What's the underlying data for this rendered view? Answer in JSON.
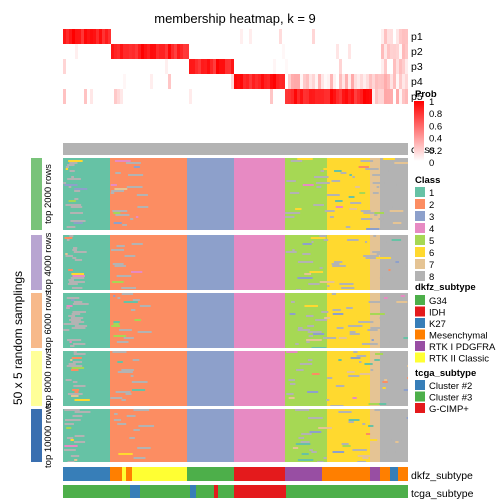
{
  "chart_data": {
    "type": "heatmap",
    "title": "membership heatmap, k = 9",
    "ylabel": "50 x 5 random samplings",
    "prob_rows": [
      "p1",
      "p2",
      "p3",
      "p4",
      "p5"
    ],
    "class_row_label": "class",
    "row_groups": [
      {
        "label": "top 2000 rows",
        "color": "#79c37a"
      },
      {
        "label": "top 4000 rows",
        "color": "#b8a5d1"
      },
      {
        "label": "top 6000 rows",
        "color": "#f7b98a"
      },
      {
        "label": "top 8000 rows",
        "color": "#ffff99"
      },
      {
        "label": "top 10000 rows",
        "color": "#3a6fb0"
      }
    ],
    "bottom_tracks": [
      "dkfz_subtype",
      "tcga_subtype"
    ],
    "prob_legend": {
      "title": "Prob",
      "ticks": [
        "1",
        "0.8",
        "0.6",
        "0.4",
        "0.2",
        "0"
      ],
      "low_color": "#ffffff",
      "high_color": "#ff0000"
    },
    "class_legend": {
      "title": "Class",
      "items": [
        {
          "label": "1",
          "color": "#66c2a5"
        },
        {
          "label": "2",
          "color": "#fc8d62"
        },
        {
          "label": "3",
          "color": "#8da0cb"
        },
        {
          "label": "4",
          "color": "#e78ac3"
        },
        {
          "label": "5",
          "color": "#a6d854"
        },
        {
          "label": "6",
          "color": "#ffd92f"
        },
        {
          "label": "7",
          "color": "#e5c494"
        },
        {
          "label": "8",
          "color": "#b3b3b3"
        }
      ]
    },
    "dkfz_legend": {
      "title": "dkfz_subtype",
      "items": [
        {
          "label": "G34",
          "color": "#4daf4a"
        },
        {
          "label": "IDH",
          "color": "#e41a1c"
        },
        {
          "label": "K27",
          "color": "#377eb8"
        },
        {
          "label": "Mesenchymal",
          "color": "#ff7f00"
        },
        {
          "label": "RTK I PDGFRA",
          "color": "#984ea3"
        },
        {
          "label": "RTK II Classic",
          "color": "#ffff33"
        }
      ]
    },
    "tcga_legend": {
      "title": "tcga_subtype",
      "items": [
        {
          "label": "Cluster #2",
          "color": "#377eb8"
        },
        {
          "label": "Cluster #3",
          "color": "#4daf4a"
        },
        {
          "label": "G-CIMP+",
          "color": "#e41a1c"
        }
      ]
    },
    "column_class_blocks": [
      {
        "class": "1",
        "color": "#66c2a5"
      },
      {
        "class": "2",
        "color": "#fc8d62"
      },
      {
        "class": "3",
        "color": "#8da0cb"
      },
      {
        "class": "4",
        "color": "#e78ac3"
      },
      {
        "class": "5",
        "color": "#a6d854"
      },
      {
        "class": "6",
        "color": "#ffd92f"
      },
      {
        "class": "7",
        "color": "#e5c494"
      },
      {
        "class": "8",
        "color": "#b3b3b3"
      }
    ]
  }
}
